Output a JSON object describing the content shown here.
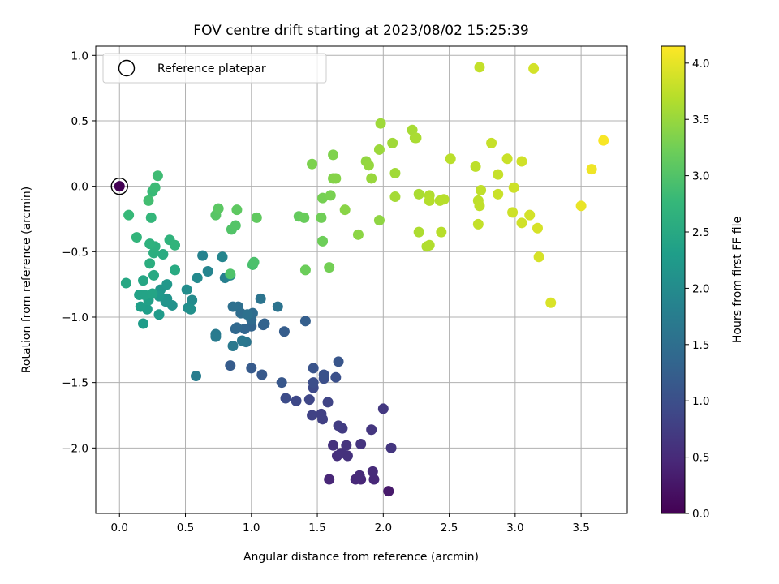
{
  "chart_data": {
    "type": "scatter",
    "title": "FOV centre drift starting at 2023/08/02 15:25:39",
    "xlabel": "Angular distance from reference (arcmin)",
    "ylabel": "Rotation from reference (arcmin)",
    "xlim": [
      -0.18,
      3.85
    ],
    "ylim": [
      -2.5,
      1.07
    ],
    "xticks": [
      0.0,
      0.5,
      1.0,
      1.5,
      2.0,
      2.5,
      3.0,
      3.5
    ],
    "xtick_labels": [
      "0.0",
      "0.5",
      "1.0",
      "1.5",
      "2.0",
      "2.5",
      "3.0",
      "3.5"
    ],
    "yticks": [
      -2.0,
      -1.5,
      -1.0,
      -0.5,
      0.0,
      0.5,
      1.0
    ],
    "ytick_labels": [
      "−2.0",
      "−1.5",
      "−1.0",
      "−0.5",
      "0.0",
      "0.5",
      "1.0"
    ],
    "grid": true,
    "legend": {
      "placement": "top-left",
      "entries": [
        "Reference platepar"
      ]
    },
    "reference_point": {
      "x": 0.0,
      "y": 0.0,
      "label": "Reference platepar"
    },
    "colorbar": {
      "label": "Hours from first FF file",
      "colormap": "viridis",
      "range": [
        0.0,
        4.15
      ],
      "ticks": [
        0.0,
        0.5,
        1.0,
        1.5,
        2.0,
        2.5,
        3.0,
        3.5,
        4.0
      ],
      "tick_labels": [
        "0.0",
        "0.5",
        "1.0",
        "1.5",
        "2.0",
        "2.5",
        "3.0",
        "3.5",
        "4.0"
      ]
    },
    "points": [
      [
        0.0,
        0.0,
        0.0
      ],
      [
        2.04,
        -2.33,
        0.3
      ],
      [
        1.59,
        -2.24,
        0.45
      ],
      [
        1.83,
        -2.24,
        0.45
      ],
      [
        1.93,
        -2.24,
        0.48
      ],
      [
        1.79,
        -2.24,
        0.48
      ],
      [
        1.92,
        -2.18,
        0.5
      ],
      [
        1.82,
        -2.21,
        0.5
      ],
      [
        1.65,
        -2.06,
        0.55
      ],
      [
        1.73,
        -2.06,
        0.58
      ],
      [
        1.68,
        -2.04,
        0.58
      ],
      [
        1.62,
        -1.98,
        0.6
      ],
      [
        1.72,
        -1.98,
        0.62
      ],
      [
        1.83,
        -1.97,
        0.62
      ],
      [
        2.06,
        -2.0,
        0.65
      ],
      [
        1.91,
        -1.86,
        0.65
      ],
      [
        2.0,
        -1.7,
        0.68
      ],
      [
        1.69,
        -1.85,
        0.72
      ],
      [
        1.66,
        -1.83,
        0.75
      ],
      [
        1.54,
        -1.78,
        0.78
      ],
      [
        1.53,
        -1.74,
        0.8
      ],
      [
        1.46,
        -1.75,
        0.82
      ],
      [
        1.58,
        -1.65,
        0.85
      ],
      [
        1.44,
        -1.63,
        0.88
      ],
      [
        1.34,
        -1.64,
        0.9
      ],
      [
        1.47,
        -1.54,
        0.92
      ],
      [
        1.26,
        -1.62,
        0.95
      ],
      [
        1.47,
        -1.5,
        0.98
      ],
      [
        1.55,
        -1.47,
        1.0
      ],
      [
        1.64,
        -1.46,
        1.02
      ],
      [
        1.55,
        -1.44,
        1.05
      ],
      [
        1.47,
        -1.39,
        1.08
      ],
      [
        1.66,
        -1.34,
        1.1
      ],
      [
        1.23,
        -1.5,
        1.12
      ],
      [
        1.08,
        -1.44,
        1.15
      ],
      [
        1.0,
        -1.39,
        1.18
      ],
      [
        0.84,
        -1.37,
        1.2
      ],
      [
        1.25,
        -1.11,
        1.22
      ],
      [
        1.41,
        -1.03,
        1.25
      ],
      [
        1.09,
        -1.06,
        1.28
      ],
      [
        1.1,
        -1.05,
        1.3
      ],
      [
        1.0,
        -1.07,
        1.32
      ],
      [
        0.95,
        -1.09,
        1.35
      ],
      [
        0.88,
        -1.09,
        1.38
      ],
      [
        0.89,
        -1.08,
        1.4
      ],
      [
        1.0,
        -1.02,
        1.42
      ],
      [
        1.01,
        -0.97,
        1.45
      ],
      [
        0.92,
        -0.97,
        1.48
      ],
      [
        0.9,
        -0.92,
        1.5
      ],
      [
        0.86,
        -0.92,
        1.52
      ],
      [
        0.97,
        -0.98,
        1.55
      ],
      [
        1.2,
        -0.92,
        1.58
      ],
      [
        1.07,
        -0.86,
        1.6
      ],
      [
        0.96,
        -1.19,
        1.62
      ],
      [
        0.93,
        -1.18,
        1.65
      ],
      [
        0.86,
        -1.22,
        1.68
      ],
      [
        0.73,
        -1.13,
        1.7
      ],
      [
        0.73,
        -1.15,
        1.72
      ],
      [
        0.58,
        -1.45,
        1.75
      ],
      [
        0.8,
        -0.7,
        1.8
      ],
      [
        0.63,
        -0.53,
        1.85
      ],
      [
        0.67,
        -0.65,
        1.88
      ],
      [
        0.78,
        -0.54,
        1.9
      ],
      [
        0.84,
        -0.68,
        1.95
      ],
      [
        0.59,
        -0.7,
        1.98
      ],
      [
        0.55,
        -0.87,
        2.0
      ],
      [
        0.51,
        -0.79,
        2.02
      ],
      [
        0.52,
        -0.93,
        2.05
      ],
      [
        0.54,
        -0.94,
        2.08
      ],
      [
        0.4,
        -0.91,
        2.1
      ],
      [
        0.36,
        -0.86,
        2.12
      ],
      [
        0.35,
        -0.88,
        2.15
      ],
      [
        0.31,
        -0.79,
        2.18
      ],
      [
        0.36,
        -0.75,
        2.2
      ],
      [
        0.3,
        -0.84,
        2.22
      ],
      [
        0.3,
        -0.98,
        2.25
      ],
      [
        0.18,
        -1.05,
        2.28
      ],
      [
        0.21,
        -0.94,
        2.3
      ],
      [
        0.16,
        -0.92,
        2.32
      ],
      [
        0.22,
        -0.87,
        2.35
      ],
      [
        0.15,
        -0.83,
        2.38
      ],
      [
        0.19,
        -0.83,
        2.4
      ],
      [
        0.25,
        -0.82,
        2.42
      ],
      [
        0.18,
        -0.72,
        2.45
      ],
      [
        0.05,
        -0.74,
        2.48
      ],
      [
        0.26,
        -0.68,
        2.5
      ],
      [
        0.42,
        -0.64,
        2.52
      ],
      [
        0.33,
        -0.52,
        2.55
      ],
      [
        0.23,
        -0.59,
        2.58
      ],
      [
        0.26,
        -0.51,
        2.6
      ],
      [
        0.27,
        -0.46,
        2.62
      ],
      [
        0.23,
        -0.44,
        2.65
      ],
      [
        0.38,
        -0.41,
        2.68
      ],
      [
        0.42,
        -0.45,
        2.7
      ],
      [
        0.13,
        -0.39,
        2.72
      ],
      [
        0.24,
        -0.24,
        2.75
      ],
      [
        0.07,
        -0.22,
        2.78
      ],
      [
        0.25,
        -0.04,
        2.8
      ],
      [
        0.27,
        -0.01,
        2.82
      ],
      [
        0.29,
        0.08,
        2.85
      ],
      [
        0.22,
        -0.11,
        2.88
      ],
      [
        1.01,
        -0.6,
        2.92
      ],
      [
        1.02,
        -0.58,
        2.95
      ],
      [
        0.84,
        -0.67,
        2.98
      ],
      [
        0.85,
        -0.33,
        3.0
      ],
      [
        0.88,
        -0.3,
        3.02
      ],
      [
        0.73,
        -0.22,
        3.05
      ],
      [
        0.75,
        -0.17,
        3.08
      ],
      [
        0.89,
        -0.18,
        3.1
      ],
      [
        1.04,
        -0.24,
        3.12
      ],
      [
        1.36,
        -0.23,
        3.15
      ],
      [
        1.4,
        -0.24,
        3.18
      ],
      [
        1.41,
        -0.64,
        3.2
      ],
      [
        1.54,
        -0.42,
        3.22
      ],
      [
        1.53,
        -0.24,
        3.24
      ],
      [
        1.59,
        -0.62,
        3.26
      ],
      [
        1.54,
        -0.09,
        3.28
      ],
      [
        1.6,
        -0.07,
        3.3
      ],
      [
        1.46,
        0.17,
        3.32
      ],
      [
        1.62,
        0.24,
        3.34
      ],
      [
        1.62,
        0.06,
        3.36
      ],
      [
        1.64,
        0.06,
        3.38
      ],
      [
        1.71,
        -0.18,
        3.4
      ],
      [
        1.81,
        -0.37,
        3.42
      ],
      [
        1.97,
        -0.26,
        3.44
      ],
      [
        1.87,
        0.19,
        3.46
      ],
      [
        1.89,
        0.16,
        3.48
      ],
      [
        1.91,
        0.06,
        3.5
      ],
      [
        1.97,
        0.28,
        3.52
      ],
      [
        1.98,
        0.48,
        3.54
      ],
      [
        2.07,
        0.33,
        3.55
      ],
      [
        2.09,
        0.1,
        3.56
      ],
      [
        2.09,
        -0.08,
        3.58
      ],
      [
        2.24,
        0.37,
        3.6
      ],
      [
        2.22,
        0.43,
        3.6
      ],
      [
        2.25,
        0.37,
        3.62
      ],
      [
        2.27,
        -0.06,
        3.62
      ],
      [
        2.27,
        -0.35,
        3.64
      ],
      [
        2.33,
        -0.46,
        3.65
      ],
      [
        2.35,
        -0.45,
        3.66
      ],
      [
        2.35,
        -0.07,
        3.66
      ],
      [
        2.35,
        -0.11,
        3.68
      ],
      [
        2.43,
        -0.11,
        3.68
      ],
      [
        2.46,
        -0.1,
        3.7
      ],
      [
        2.44,
        -0.35,
        3.7
      ],
      [
        2.51,
        0.21,
        3.72
      ],
      [
        2.7,
        0.15,
        3.74
      ],
      [
        2.72,
        -0.11,
        3.74
      ],
      [
        2.73,
        -0.15,
        3.76
      ],
      [
        2.74,
        -0.03,
        3.76
      ],
      [
        2.72,
        -0.29,
        3.78
      ],
      [
        2.73,
        0.91,
        3.78
      ],
      [
        2.82,
        0.33,
        3.8
      ],
      [
        2.87,
        0.09,
        3.8
      ],
      [
        2.87,
        -0.06,
        3.82
      ],
      [
        2.94,
        0.21,
        3.82
      ],
      [
        2.98,
        -0.2,
        3.84
      ],
      [
        2.99,
        -0.01,
        3.84
      ],
      [
        3.05,
        0.19,
        3.86
      ],
      [
        3.05,
        -0.28,
        3.86
      ],
      [
        3.11,
        -0.22,
        3.88
      ],
      [
        3.14,
        0.9,
        3.88
      ],
      [
        3.17,
        -0.32,
        3.9
      ],
      [
        3.18,
        -0.54,
        3.9
      ],
      [
        3.27,
        -0.89,
        3.92
      ],
      [
        3.5,
        -0.15,
        4.02
      ],
      [
        3.58,
        0.13,
        4.06
      ],
      [
        3.67,
        0.35,
        4.12
      ]
    ]
  }
}
